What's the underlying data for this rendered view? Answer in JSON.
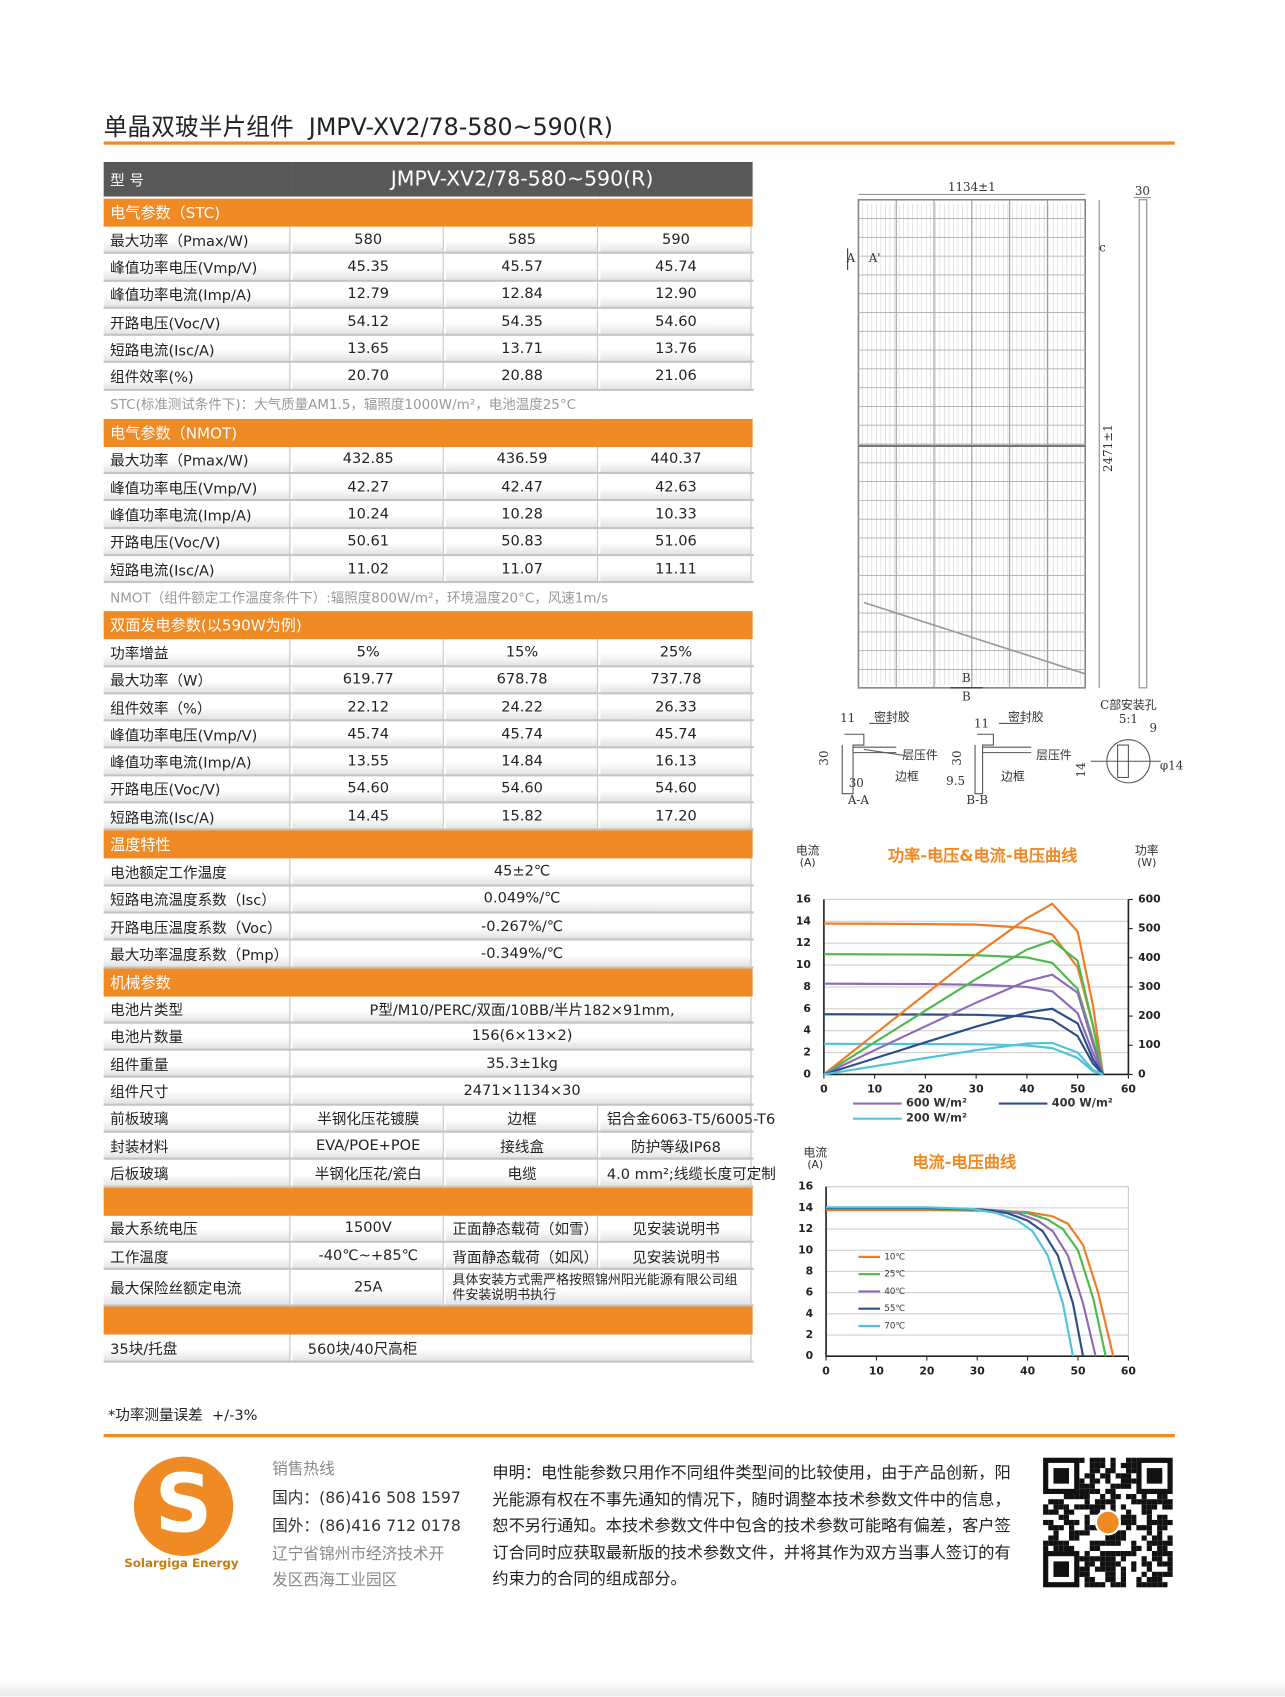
{
  "header": {
    "title": "单晶双玻半片组件  JMPV-XV2/78-580~590(R)"
  },
  "spec_table": {
    "head": [
      "型 号",
      "JMPV-XV2/78-580~590(R)"
    ],
    "blocks": [
      {
        "title": "电气参数（STC)",
        "rows": [
          [
            "最大功率（Pmax/W)",
            "580",
            "585",
            "590"
          ],
          [
            "峰值功率电压(Vmp/V)",
            "45.35",
            "45.57",
            "45.74"
          ],
          [
            "峰值功率电流(Imp/A)",
            "12.79",
            "12.84",
            "12.90"
          ],
          [
            "开路电压(Voc/V)",
            "54.12",
            "54.35",
            "54.60"
          ],
          [
            "短路电流(Isc/A)",
            "13.65",
            "13.71",
            "13.76"
          ],
          [
            "组件效率(%)",
            "20.70",
            "20.88",
            "21.06"
          ]
        ],
        "note": "STC(标准测试条件下)：大气质量AM1.5，辐照度1000W/m²，电池温度25°C"
      },
      {
        "title": "电气参数（NMOT)",
        "rows": [
          [
            "最大功率（Pmax/W)",
            "432.85",
            "436.59",
            "440.37"
          ],
          [
            "峰值功率电压(Vmp/V)",
            "42.27",
            "42.47",
            "42.63"
          ],
          [
            "峰值功率电流(Imp/A)",
            "10.24",
            "10.28",
            "10.33"
          ],
          [
            "开路电压(Voc/V)",
            "50.61",
            "50.83",
            "51.06"
          ],
          [
            "短路电流(Isc/A)",
            "11.02",
            "11.07",
            "11.11"
          ]
        ],
        "note": "NMOT（组件额定工作温度条件下）:辐照度800W/m²，环境温度20°C，风速1m/s"
      },
      {
        "title": "双面发电参数(以590W为例)",
        "rows": [
          [
            "功率增益",
            "5%",
            "15%",
            "25%"
          ],
          [
            "最大功率（W）",
            "619.77",
            "678.78",
            "737.78"
          ],
          [
            "组件效率（%）",
            "22.12",
            "24.22",
            "26.33"
          ],
          [
            "峰值功率电压(Vmp/V)",
            "45.74",
            "45.74",
            "45.74"
          ],
          [
            "峰值功率电流(Imp/A)",
            "13.55",
            "14.84",
            "16.13"
          ],
          [
            "开路电压(Voc/V)",
            "54.60",
            "54.60",
            "54.60"
          ],
          [
            "短路电流(Isc/A)",
            "14.45",
            "15.82",
            "17.20"
          ]
        ]
      },
      {
        "title": "温度特性",
        "rows": [
          [
            "电池额定工作温度",
            "45±2℃"
          ],
          [
            "短路电流温度系数（Isc）",
            "0.049%/℃"
          ],
          [
            "开路电压温度系数（Voc）",
            "-0.267%/℃"
          ],
          [
            "最大功率温度系数（Pmp）",
            "-0.349%/℃"
          ]
        ]
      },
      {
        "title": "机械参数",
        "rows": [
          [
            "电池片类型",
            "P型/M10/PERC/双面/10BB/半片182×91mm,"
          ],
          [
            "电池片数量",
            "156(6×13×2)"
          ],
          [
            "组件重量",
            "35.3±1kg"
          ],
          [
            "组件尺寸",
            "2471×1134×30"
          ],
          [
            "前板玻璃",
            "半钢化压花镀膜",
            "边框",
            "铝合金6063-T5/6005-T6"
          ],
          [
            "封装材料",
            "EVA/POE+POE",
            "接线盒",
            "防护等级IP68"
          ],
          [
            "后板玻璃",
            "半钢化压花/瓷白",
            "电缆",
            "4.0 mm²;线缆长度可定制"
          ]
        ]
      },
      {
        "rows": [
          [
            "最大系统电压",
            "1500V",
            "正面静态载荷（如雪）",
            "见安装说明书"
          ],
          [
            "工作温度",
            "-40℃~+85℃",
            "背面静态载荷（如风）",
            "见安装说明书"
          ],
          [
            "最大保险丝额定电流",
            "25A",
            "具体安装方式需严格按照锦州阳光能源有限公司组件安装说明书执行"
          ]
        ]
      },
      {
        "rows": [
          [
            "35块/托盘",
            "560块/40尺高柜"
          ]
        ]
      }
    ],
    "footnote": "*功率测量误差  +/-3%"
  },
  "drawing": {
    "labels": [
      "1134±1",
      "30",
      "A",
      "A'",
      "c",
      "2471±1",
      "B",
      "B",
      "11",
      "密封胶",
      "30",
      "层压件",
      "30",
      "边框",
      "A-A",
      "11",
      "密封胶",
      "30",
      "层压件",
      "9.5",
      "边框",
      "B-B",
      "C部安装孔",
      "5:1",
      "9",
      "14",
      "φ14"
    ]
  },
  "chart_data": [
    {
      "type": "line",
      "title": "功率-电压&电流-电压曲线",
      "ylabel": "电流",
      "ylabel_unit": "(A)",
      "y2label": "功率",
      "y2label_unit": "(W)",
      "x": [
        0,
        10,
        20,
        30,
        40,
        45,
        50,
        53,
        55
      ],
      "xlim": [
        0,
        60
      ],
      "xticks": [
        0,
        10,
        20,
        30,
        40,
        50,
        60
      ],
      "ylim": [
        0,
        16
      ],
      "yticks": [
        0,
        2,
        4,
        6,
        8,
        10,
        12,
        14,
        16
      ],
      "y2lim": [
        0,
        600
      ],
      "y2ticks": [
        0,
        100,
        200,
        300,
        400,
        500,
        600
      ],
      "grid": true,
      "legend": "bottom",
      "series": [
        {
          "color": "#f07a26",
          "values": [
            13.8,
            13.78,
            13.75,
            13.7,
            13.4,
            12.8,
            9.8,
            4.5,
            0
          ]
        },
        {
          "color": "#4fb84f",
          "values": [
            11,
            10.98,
            10.96,
            10.9,
            10.7,
            10.2,
            7.8,
            3.2,
            0
          ]
        },
        {
          "name": "600 W/m²",
          "color": "#8e6bb5",
          "values": [
            8.3,
            8.28,
            8.26,
            8.2,
            8.0,
            7.6,
            5.6,
            2,
            0
          ]
        },
        {
          "name": "400 W/m²",
          "color": "#2c4f8a",
          "values": [
            5.5,
            5.49,
            5.48,
            5.45,
            5.3,
            5.0,
            3.5,
            1,
            0
          ]
        },
        {
          "name": "200 W/m²",
          "color": "#4fc3d9",
          "values": [
            2.8,
            2.79,
            2.78,
            2.75,
            2.65,
            2.4,
            1.5,
            0.3,
            0
          ]
        },
        {
          "color": "#f07a26",
          "axis": "y2",
          "values": [
            0,
            138,
            275,
            411,
            536,
            585,
            490,
            238,
            0
          ]
        },
        {
          "color": "#4fb84f",
          "axis": "y2",
          "values": [
            0,
            110,
            219,
            327,
            428,
            459,
            390,
            170,
            0
          ]
        },
        {
          "color": "#8e6bb5",
          "axis": "y2",
          "values": [
            0,
            83,
            165,
            246,
            320,
            342,
            280,
            106,
            0
          ]
        },
        {
          "color": "#2c4f8a",
          "axis": "y2",
          "values": [
            0,
            55,
            110,
            164,
            212,
            225,
            175,
            53,
            0
          ]
        },
        {
          "color": "#4fc3d9",
          "axis": "y2",
          "values": [
            0,
            28,
            56,
            83,
            106,
            108,
            75,
            16,
            0
          ]
        }
      ]
    },
    {
      "type": "line",
      "title": "电流-电压曲线",
      "ylabel": "电流",
      "ylabel_unit": "(A)",
      "xlim": [
        0,
        60
      ],
      "xticks": [
        0,
        10,
        20,
        30,
        40,
        50,
        60
      ],
      "ylim": [
        0,
        16
      ],
      "yticks": [
        0,
        2,
        4,
        6,
        8,
        10,
        12,
        14,
        16
      ],
      "grid": true,
      "legend": "left",
      "series": [
        {
          "name": "10℃",
          "color": "#f07a26",
          "x": [
            0,
            20,
            35,
            40,
            45,
            48,
            51,
            54,
            57
          ],
          "values": [
            13.8,
            13.8,
            13.7,
            13.6,
            13.2,
            12.5,
            10.5,
            6,
            0
          ]
        },
        {
          "name": "25℃",
          "color": "#4fb84f",
          "x": [
            0,
            20,
            35,
            40,
            44,
            47,
            50,
            53,
            55.5
          ],
          "values": [
            13.9,
            13.9,
            13.75,
            13.5,
            12.9,
            12,
            10,
            5.5,
            0
          ]
        },
        {
          "name": "40℃",
          "color": "#8e6bb5",
          "x": [
            0,
            20,
            33,
            38,
            42,
            45,
            48,
            51,
            53.5
          ],
          "values": [
            13.95,
            13.95,
            13.8,
            13.5,
            12.8,
            11.8,
            9.5,
            5,
            0
          ]
        },
        {
          "name": "55℃",
          "color": "#2c4f8a",
          "x": [
            0,
            20,
            31,
            36,
            40,
            43,
            46,
            49,
            51
          ],
          "values": [
            14,
            14,
            13.85,
            13.5,
            12.8,
            11.8,
            9.5,
            5,
            0
          ]
        },
        {
          "name": "70℃",
          "color": "#4fc3d9",
          "x": [
            0,
            20,
            29,
            34,
            38,
            41,
            44,
            47,
            49
          ],
          "values": [
            14.05,
            14.05,
            13.9,
            13.5,
            12.8,
            11.8,
            9.5,
            5,
            0
          ]
        }
      ]
    }
  ],
  "footer": {
    "hotline_title": "销售热线",
    "lines": [
      "国内：(86)416 508 1597",
      "国外：(86)416 712 0178",
      "辽宁省锦州市经济技术开",
      "发区西海工业园区"
    ],
    "logo_letter": "S",
    "brand": "Solargiga Energy",
    "disclaimer": "申明：电性能参数只用作不同组件类型间的比较使用，由于产品创新，阳光能源有权在不事先通知的情况下，随时调整本技术参数文件中的信息，恕不另行通知。本技术参数文件中包含的技术参数可能略有偏差，客户签订合同时应获取最新版的技术参数文件，并将其作为双方当事人签订的有约束力的合同的组成部分。"
  }
}
